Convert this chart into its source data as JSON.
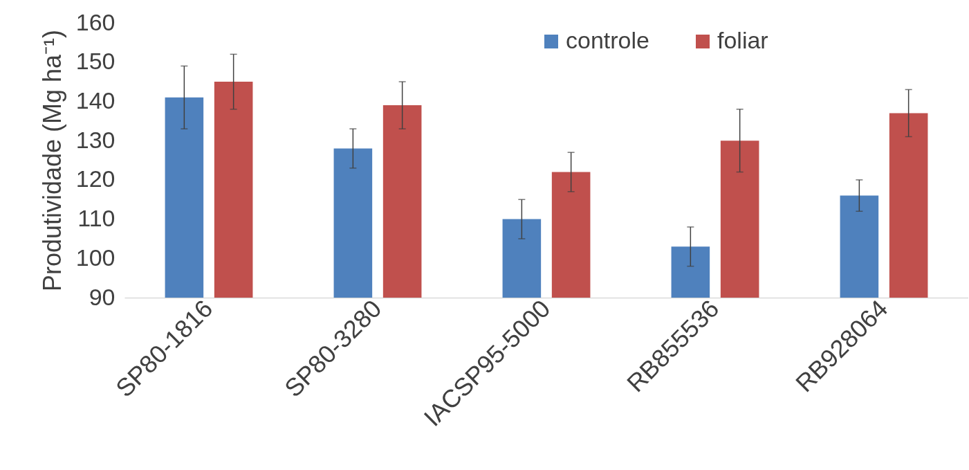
{
  "chart_data": {
    "type": "bar",
    "ylabel": "Produtividade (Mg ha⁻¹)",
    "categories": [
      "SP80-1816",
      "SP80-3280",
      "IACSP95-5000",
      "RB855536",
      "RB928064"
    ],
    "series": [
      {
        "name": "controle",
        "color": "#4f81bd",
        "values": [
          141,
          128,
          110,
          103,
          116
        ],
        "errors": [
          8,
          5,
          5,
          5,
          4
        ]
      },
      {
        "name": "foliar",
        "color": "#c0504d",
        "values": [
          145,
          139,
          122,
          130,
          137
        ],
        "errors": [
          7,
          6,
          5,
          8,
          6
        ]
      }
    ],
    "ylim": [
      90,
      160
    ],
    "yticks": [
      90,
      100,
      110,
      120,
      130,
      140,
      150,
      160
    ],
    "legend": "top right"
  }
}
